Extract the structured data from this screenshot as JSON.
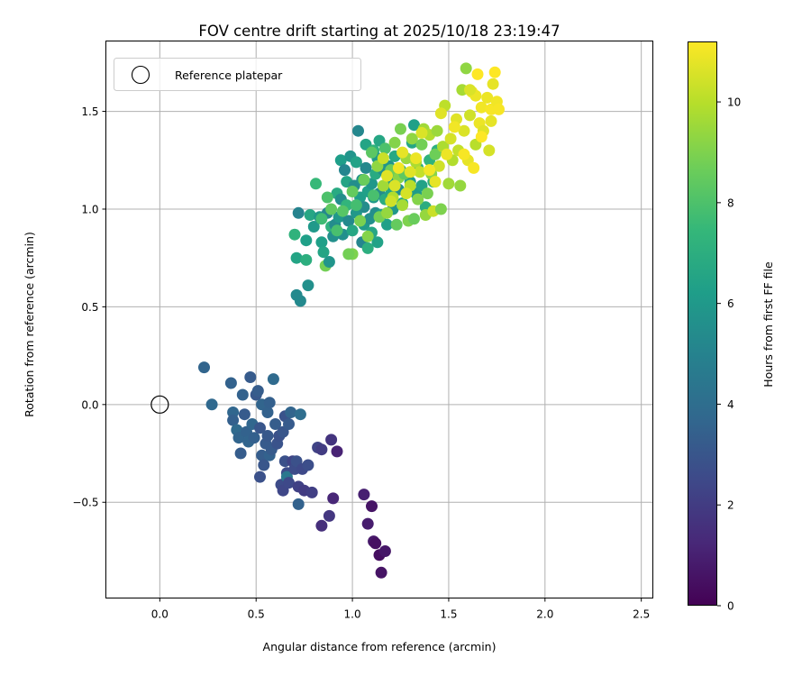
{
  "chart_data": {
    "type": "scatter",
    "title": "FOV centre drift starting at 2025/10/18 23:19:47",
    "xlabel": "Angular distance from reference (arcmin)",
    "ylabel": "Rotation from reference (arcmin)",
    "xlim": [
      -0.28,
      2.56
    ],
    "ylim": [
      -0.99,
      1.86
    ],
    "xticks": [
      0.0,
      0.5,
      1.0,
      1.5,
      2.0,
      2.5
    ],
    "xtick_labels": [
      "0.0",
      "0.5",
      "1.0",
      "1.5",
      "2.0",
      "2.5"
    ],
    "yticks": [
      -0.5,
      0.0,
      0.5,
      1.0,
      1.5
    ],
    "ytick_labels": [
      "−0.5",
      "0.0",
      "0.5",
      "1.0",
      "1.5"
    ],
    "grid": true,
    "colormap": "viridis",
    "colors": {
      "viridis_stops": [
        "#440154",
        "#482878",
        "#3e4989",
        "#31688e",
        "#26828e",
        "#1f9e89",
        "#35b779",
        "#6ece58",
        "#b5de2b",
        "#fde725"
      ],
      "grid": "#b0b0b0",
      "axis": "#000000",
      "reference_marker": "#000000"
    },
    "colorbar": {
      "label": "Hours from first FF file",
      "min": 0,
      "max": 11.2,
      "ticks": [
        0,
        2,
        4,
        6,
        8,
        10
      ],
      "tick_labels": [
        "0",
        "2",
        "4",
        "6",
        "8",
        "10"
      ]
    },
    "legend": {
      "position": "top-left",
      "entries": [
        {
          "label": "Reference platepar",
          "marker": "open-circle"
        }
      ]
    },
    "reference_point": {
      "x": 0.0,
      "y": 0.0,
      "label": "Reference platepar"
    },
    "points": [
      [
        0.23,
        0.19,
        3.6
      ],
      [
        0.27,
        0.0,
        3.8
      ],
      [
        0.37,
        0.11,
        3.5
      ],
      [
        0.38,
        -0.04,
        3.7
      ],
      [
        0.38,
        -0.08,
        3.4
      ],
      [
        0.4,
        -0.13,
        3.9
      ],
      [
        0.41,
        -0.17,
        3.6
      ],
      [
        0.42,
        -0.25,
        3.3
      ],
      [
        0.43,
        0.05,
        3.5
      ],
      [
        0.44,
        -0.05,
        3.2
      ],
      [
        0.45,
        -0.14,
        3.5
      ],
      [
        0.46,
        -0.19,
        3.6
      ],
      [
        0.47,
        0.14,
        3.2
      ],
      [
        0.48,
        -0.1,
        3.7
      ],
      [
        0.49,
        -0.17,
        3.4
      ],
      [
        0.5,
        0.05,
        3.1
      ],
      [
        0.51,
        0.07,
        3.3
      ],
      [
        0.52,
        -0.12,
        3.0
      ],
      [
        0.52,
        -0.37,
        2.8
      ],
      [
        0.53,
        0.0,
        3.6
      ],
      [
        0.53,
        -0.26,
        3.3
      ],
      [
        0.54,
        -0.31,
        3.0
      ],
      [
        0.55,
        -0.2,
        3.2
      ],
      [
        0.56,
        -0.04,
        3.5
      ],
      [
        0.56,
        -0.16,
        3.1
      ],
      [
        0.57,
        0.01,
        3.4
      ],
      [
        0.57,
        -0.26,
        3.5
      ],
      [
        0.58,
        -0.23,
        3.2
      ],
      [
        0.59,
        0.13,
        3.9
      ],
      [
        0.6,
        -0.1,
        3.3
      ],
      [
        0.61,
        -0.2,
        2.9
      ],
      [
        0.62,
        -0.16,
        2.8
      ],
      [
        0.63,
        -0.41,
        2.6
      ],
      [
        0.64,
        -0.14,
        3.0
      ],
      [
        0.64,
        -0.44,
        2.4
      ],
      [
        0.65,
        -0.06,
        2.9
      ],
      [
        0.65,
        -0.29,
        2.8
      ],
      [
        0.66,
        -0.35,
        2.6
      ],
      [
        0.66,
        -0.37,
        4.5
      ],
      [
        0.67,
        -0.1,
        3.2
      ],
      [
        0.67,
        -0.4,
        2.5
      ],
      [
        0.68,
        -0.04,
        3.6
      ],
      [
        0.69,
        -0.29,
        2.3
      ],
      [
        0.7,
        -0.33,
        2.6
      ],
      [
        0.71,
        -0.29,
        2.8
      ],
      [
        0.72,
        -0.42,
        2.2
      ],
      [
        0.72,
        -0.51,
        3.5
      ],
      [
        0.73,
        -0.05,
        4.0
      ],
      [
        0.74,
        -0.33,
        2.5
      ],
      [
        0.75,
        -0.44,
        2.0
      ],
      [
        0.77,
        -0.31,
        2.7
      ],
      [
        0.79,
        -0.45,
        2.1
      ],
      [
        0.82,
        -0.22,
        2.3
      ],
      [
        0.84,
        -0.62,
        1.5
      ],
      [
        0.84,
        -0.23,
        2.0
      ],
      [
        0.88,
        -0.57,
        1.8
      ],
      [
        0.89,
        -0.18,
        1.7
      ],
      [
        0.9,
        -0.48,
        1.2
      ],
      [
        0.92,
        -0.24,
        1.1
      ],
      [
        1.06,
        -0.46,
        1.0
      ],
      [
        1.08,
        -0.61,
        0.9
      ],
      [
        1.1,
        -0.52,
        0.6
      ],
      [
        1.11,
        -0.7,
        0.8
      ],
      [
        1.12,
        -0.71,
        0.5
      ],
      [
        1.14,
        -0.77,
        0.4
      ],
      [
        1.15,
        -0.86,
        0.6
      ],
      [
        1.17,
        -0.75,
        0.7
      ],
      [
        0.71,
        0.56,
        5.3
      ],
      [
        0.72,
        0.98,
        5.0
      ],
      [
        0.73,
        0.53,
        5.3
      ],
      [
        0.71,
        0.75,
        6.5
      ],
      [
        0.7,
        0.87,
        7.2
      ],
      [
        0.76,
        0.74,
        7.0
      ],
      [
        0.76,
        0.84,
        6.3
      ],
      [
        0.77,
        0.61,
        5.6
      ],
      [
        0.78,
        0.97,
        6.6
      ],
      [
        0.8,
        0.91,
        6.0
      ],
      [
        0.83,
        0.96,
        5.9
      ],
      [
        0.84,
        0.83,
        6.3
      ],
      [
        0.85,
        0.78,
        6.5
      ],
      [
        0.86,
        0.71,
        8.8
      ],
      [
        0.87,
        0.98,
        5.2
      ],
      [
        0.88,
        0.73,
        5.8
      ],
      [
        0.89,
        0.91,
        7.2
      ],
      [
        0.9,
        0.86,
        5.6
      ],
      [
        0.91,
        0.92,
        5.4
      ],
      [
        0.92,
        1.08,
        6.8
      ],
      [
        0.93,
        0.96,
        6.0
      ],
      [
        0.94,
        1.05,
        5.5
      ],
      [
        0.94,
        1.25,
        6.2
      ],
      [
        0.95,
        0.87,
        5.6
      ],
      [
        0.96,
        1.2,
        5.1
      ],
      [
        0.97,
        1.02,
        7.3
      ],
      [
        0.97,
        1.14,
        6.5
      ],
      [
        0.98,
        0.94,
        5.3
      ],
      [
        0.99,
        1.27,
        5.8
      ],
      [
        1.0,
        0.89,
        6.6
      ],
      [
        1.0,
        0.77,
        9.0
      ],
      [
        1.01,
        1.12,
        5.5
      ],
      [
        1.02,
        0.98,
        5.9
      ],
      [
        1.02,
        1.24,
        6.4
      ],
      [
        1.03,
        1.4,
        5.2
      ],
      [
        1.04,
        1.06,
        6.2
      ],
      [
        1.05,
        0.83,
        5.1
      ],
      [
        1.05,
        1.15,
        5.7
      ],
      [
        1.06,
        1.01,
        5.4
      ],
      [
        1.06,
        0.92,
        6.1
      ],
      [
        1.07,
        1.33,
        6.5
      ],
      [
        1.07,
        1.21,
        5.3
      ],
      [
        1.08,
        1.09,
        6.3
      ],
      [
        1.08,
        0.8,
        7.0
      ],
      [
        1.09,
        0.95,
        5.6
      ],
      [
        1.1,
        1.13,
        5.9
      ],
      [
        1.1,
        0.88,
        6.6
      ],
      [
        1.11,
        1.3,
        7.2
      ],
      [
        1.11,
        1.06,
        6.0
      ],
      [
        1.12,
        0.98,
        5.5
      ],
      [
        1.12,
        1.18,
        6.8
      ],
      [
        1.13,
        1.26,
        6.1
      ],
      [
        1.13,
        0.83,
        6.4
      ],
      [
        1.14,
        1.08,
        5.4
      ],
      [
        1.14,
        1.35,
        6.6
      ],
      [
        1.15,
        0.97,
        6.2
      ],
      [
        1.16,
        1.2,
        5.6
      ],
      [
        1.17,
        1.05,
        6.9
      ],
      [
        1.18,
        0.92,
        6.3
      ],
      [
        1.18,
        1.13,
        6.1
      ],
      [
        1.19,
        1.22,
        5.8
      ],
      [
        1.2,
        1.08,
        6.5
      ],
      [
        1.21,
        1.0,
        5.9
      ],
      [
        1.22,
        1.27,
        6.7
      ],
      [
        1.23,
        1.16,
        6.0
      ],
      [
        1.24,
        1.1,
        5.5
      ],
      [
        1.25,
        1.2,
        6.4
      ],
      [
        1.26,
        1.03,
        6.8
      ],
      [
        1.28,
        1.26,
        5.9
      ],
      [
        1.3,
        1.14,
        6.2
      ],
      [
        1.31,
        1.34,
        6.6
      ],
      [
        1.32,
        1.43,
        6.3
      ],
      [
        1.33,
        1.08,
        6.1
      ],
      [
        1.34,
        1.21,
        6.8
      ],
      [
        1.36,
        1.12,
        6.4
      ],
      [
        1.38,
        1.01,
        6.9
      ],
      [
        1.4,
        1.25,
        7.2
      ],
      [
        1.42,
        1.14,
        7.0
      ],
      [
        1.44,
        1.3,
        7.1
      ],
      [
        0.81,
        1.13,
        7.5
      ],
      [
        0.84,
        0.95,
        7.7
      ],
      [
        0.87,
        1.06,
        8.0
      ],
      [
        0.89,
        1.0,
        8.4
      ],
      [
        0.92,
        0.89,
        7.9
      ],
      [
        0.95,
        0.99,
        8.2
      ],
      [
        0.98,
        0.77,
        8.8
      ],
      [
        1.0,
        1.09,
        8.5
      ],
      [
        1.02,
        1.02,
        7.8
      ],
      [
        1.04,
        0.94,
        8.9
      ],
      [
        1.06,
        1.15,
        8.6
      ],
      [
        1.08,
        0.86,
        9.1
      ],
      [
        1.1,
        1.29,
        8.3
      ],
      [
        1.11,
        1.07,
        7.9
      ],
      [
        1.13,
        1.22,
        9.3
      ],
      [
        1.14,
        0.96,
        8.8
      ],
      [
        1.16,
        1.12,
        9.6
      ],
      [
        1.17,
        1.31,
        8.0
      ],
      [
        1.18,
        0.98,
        9.4
      ],
      [
        1.2,
        1.2,
        8.7
      ],
      [
        1.21,
        1.06,
        9.9
      ],
      [
        1.22,
        1.34,
        9.1
      ],
      [
        1.23,
        0.92,
        8.5
      ],
      [
        1.24,
        1.16,
        9.2
      ],
      [
        1.25,
        1.41,
        8.9
      ],
      [
        1.26,
        1.02,
        9.7
      ],
      [
        1.27,
        1.18,
        8.4
      ],
      [
        1.28,
        1.26,
        9.5
      ],
      [
        1.29,
        0.94,
        9.0
      ],
      [
        1.3,
        1.12,
        10.0
      ],
      [
        1.31,
        1.36,
        9.3
      ],
      [
        1.32,
        0.95,
        8.6
      ],
      [
        1.33,
        1.24,
        9.8
      ],
      [
        1.34,
        1.05,
        9.1
      ],
      [
        1.35,
        1.19,
        10.2
      ],
      [
        1.36,
        1.33,
        8.8
      ],
      [
        1.37,
        1.41,
        9.6
      ],
      [
        1.38,
        0.97,
        9.4
      ],
      [
        1.39,
        1.08,
        8.9
      ],
      [
        1.4,
        1.38,
        9.9
      ],
      [
        1.41,
        1.18,
        9.2
      ],
      [
        1.42,
        0.99,
        10.3
      ],
      [
        1.43,
        1.28,
        8.7
      ],
      [
        1.44,
        1.4,
        9.5
      ],
      [
        1.45,
        1.22,
        10.4
      ],
      [
        1.46,
        1.0,
        9.0
      ],
      [
        1.47,
        1.32,
        9.8
      ],
      [
        1.48,
        1.53,
        10.1
      ],
      [
        1.5,
        1.13,
        9.6
      ],
      [
        1.51,
        1.36,
        10.5
      ],
      [
        1.52,
        1.25,
        9.9
      ],
      [
        1.54,
        1.46,
        10.7
      ],
      [
        1.55,
        1.3,
        10.2
      ],
      [
        1.56,
        1.12,
        9.4
      ],
      [
        1.57,
        1.61,
        9.7
      ],
      [
        1.58,
        1.4,
        10.6
      ],
      [
        1.59,
        1.72,
        9.3
      ],
      [
        1.6,
        1.25,
        10.8
      ],
      [
        1.61,
        1.48,
        10.4
      ],
      [
        1.62,
        1.6,
        11.0
      ],
      [
        1.63,
        1.21,
        11.1
      ],
      [
        1.64,
        1.33,
        10.0
      ],
      [
        1.65,
        1.69,
        11.2
      ],
      [
        1.66,
        1.44,
        10.9
      ],
      [
        1.67,
        1.52,
        11.0
      ],
      [
        1.68,
        1.4,
        10.7
      ],
      [
        1.7,
        1.57,
        10.9
      ],
      [
        1.71,
        1.3,
        10.5
      ],
      [
        1.72,
        1.51,
        11.1
      ],
      [
        1.73,
        1.64,
        10.8
      ],
      [
        1.74,
        1.7,
        11.2
      ],
      [
        1.75,
        1.55,
        11.0
      ],
      [
        1.76,
        1.51,
        11.1
      ],
      [
        1.72,
        1.45,
        10.8
      ],
      [
        1.67,
        1.37,
        11.2
      ],
      [
        1.64,
        1.58,
        10.9
      ],
      [
        1.61,
        1.61,
        10.6
      ],
      [
        1.58,
        1.28,
        11.1
      ],
      [
        1.53,
        1.42,
        11.0
      ],
      [
        1.49,
        1.28,
        10.9
      ],
      [
        1.46,
        1.49,
        10.7
      ],
      [
        1.43,
        1.14,
        10.8
      ],
      [
        1.4,
        1.2,
        11.0
      ],
      [
        1.36,
        1.39,
        10.6
      ],
      [
        1.33,
        1.26,
        10.9
      ],
      [
        1.3,
        1.19,
        10.7
      ],
      [
        1.28,
        1.08,
        10.5
      ],
      [
        1.26,
        1.29,
        10.8
      ],
      [
        1.24,
        1.21,
        11.0
      ],
      [
        1.22,
        1.12,
        10.6
      ],
      [
        1.2,
        1.04,
        10.4
      ],
      [
        1.18,
        1.17,
        10.7
      ],
      [
        1.16,
        1.26,
        10.3
      ]
    ]
  }
}
